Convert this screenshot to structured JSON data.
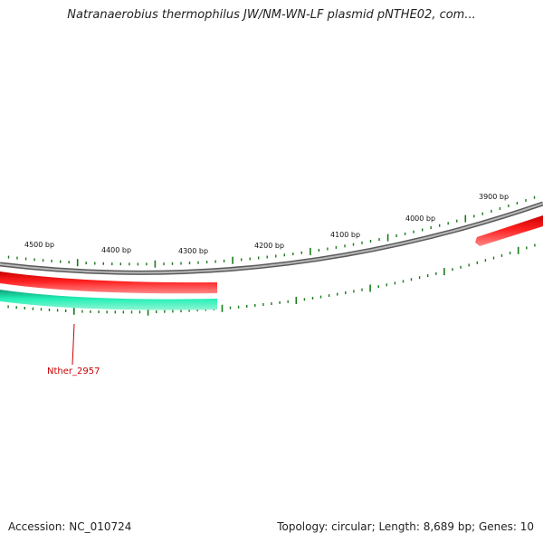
{
  "title": "Natranaerobius thermophilus JW/NM-WN-LF plasmid pNTHE02, com...",
  "footer": {
    "accession": "Accession: NC_010724",
    "summary": "Topology: circular; Length: 8,689 bp; Genes: 10"
  },
  "bp_labels": [
    "4500 bp",
    "4400 bp",
    "4300 bp",
    "4200 bp",
    "4100 bp",
    "4000 bp",
    "3900 bp"
  ],
  "gene_label": "Nther_2957",
  "colors": {
    "backbone": "#888888",
    "forward_gene": "#ee1111",
    "reverse_gene": "#22ddaa",
    "tick": "#1a7a1a",
    "gene_label": "#cc0000"
  }
}
